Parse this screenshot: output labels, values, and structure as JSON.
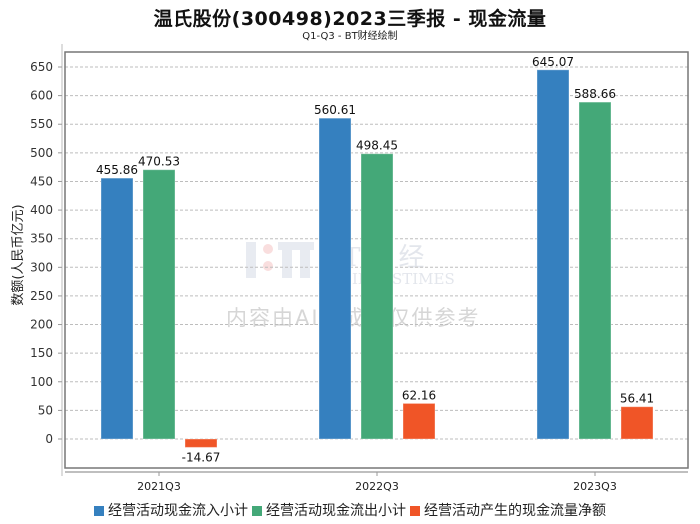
{
  "chart_data": {
    "type": "bar",
    "title": "温氏股份(300498)2023三季报 - 现金流量",
    "subtitle": "Q1-Q3 - BT财经绘制",
    "xlabel": "",
    "ylabel": "数额(人民币亿元)",
    "ylim": [
      -30,
      680
    ],
    "yticks": [
      0,
      50,
      100,
      150,
      200,
      250,
      300,
      350,
      400,
      450,
      500,
      550,
      600,
      650
    ],
    "grid": true,
    "legend_position": "bottom",
    "categories": [
      "2021Q3",
      "2022Q3",
      "2023Q3"
    ],
    "series": [
      {
        "name": "经营活动现金流入小计",
        "color": "#3580bf",
        "values": [
          455.86,
          560.61,
          645.07
        ],
        "labels": [
          "455.86",
          "560.61",
          "645.07"
        ]
      },
      {
        "name": "经营活动现金流出小计",
        "color": "#44a878",
        "values": [
          470.53,
          498.45,
          588.66
        ],
        "labels": [
          "470.53",
          "498.45",
          "588.66"
        ]
      },
      {
        "name": "经营活动产生的现金流量净额",
        "color": "#f05527",
        "values": [
          -14.67,
          62.16,
          56.41
        ],
        "labels": [
          "-14.67",
          "62.16",
          "56.41"
        ]
      }
    ]
  },
  "watermark": {
    "brand": "BT财经",
    "brand_en": "BUSINESSTIMES",
    "notice": "内容由AI生成，仅供参考"
  }
}
